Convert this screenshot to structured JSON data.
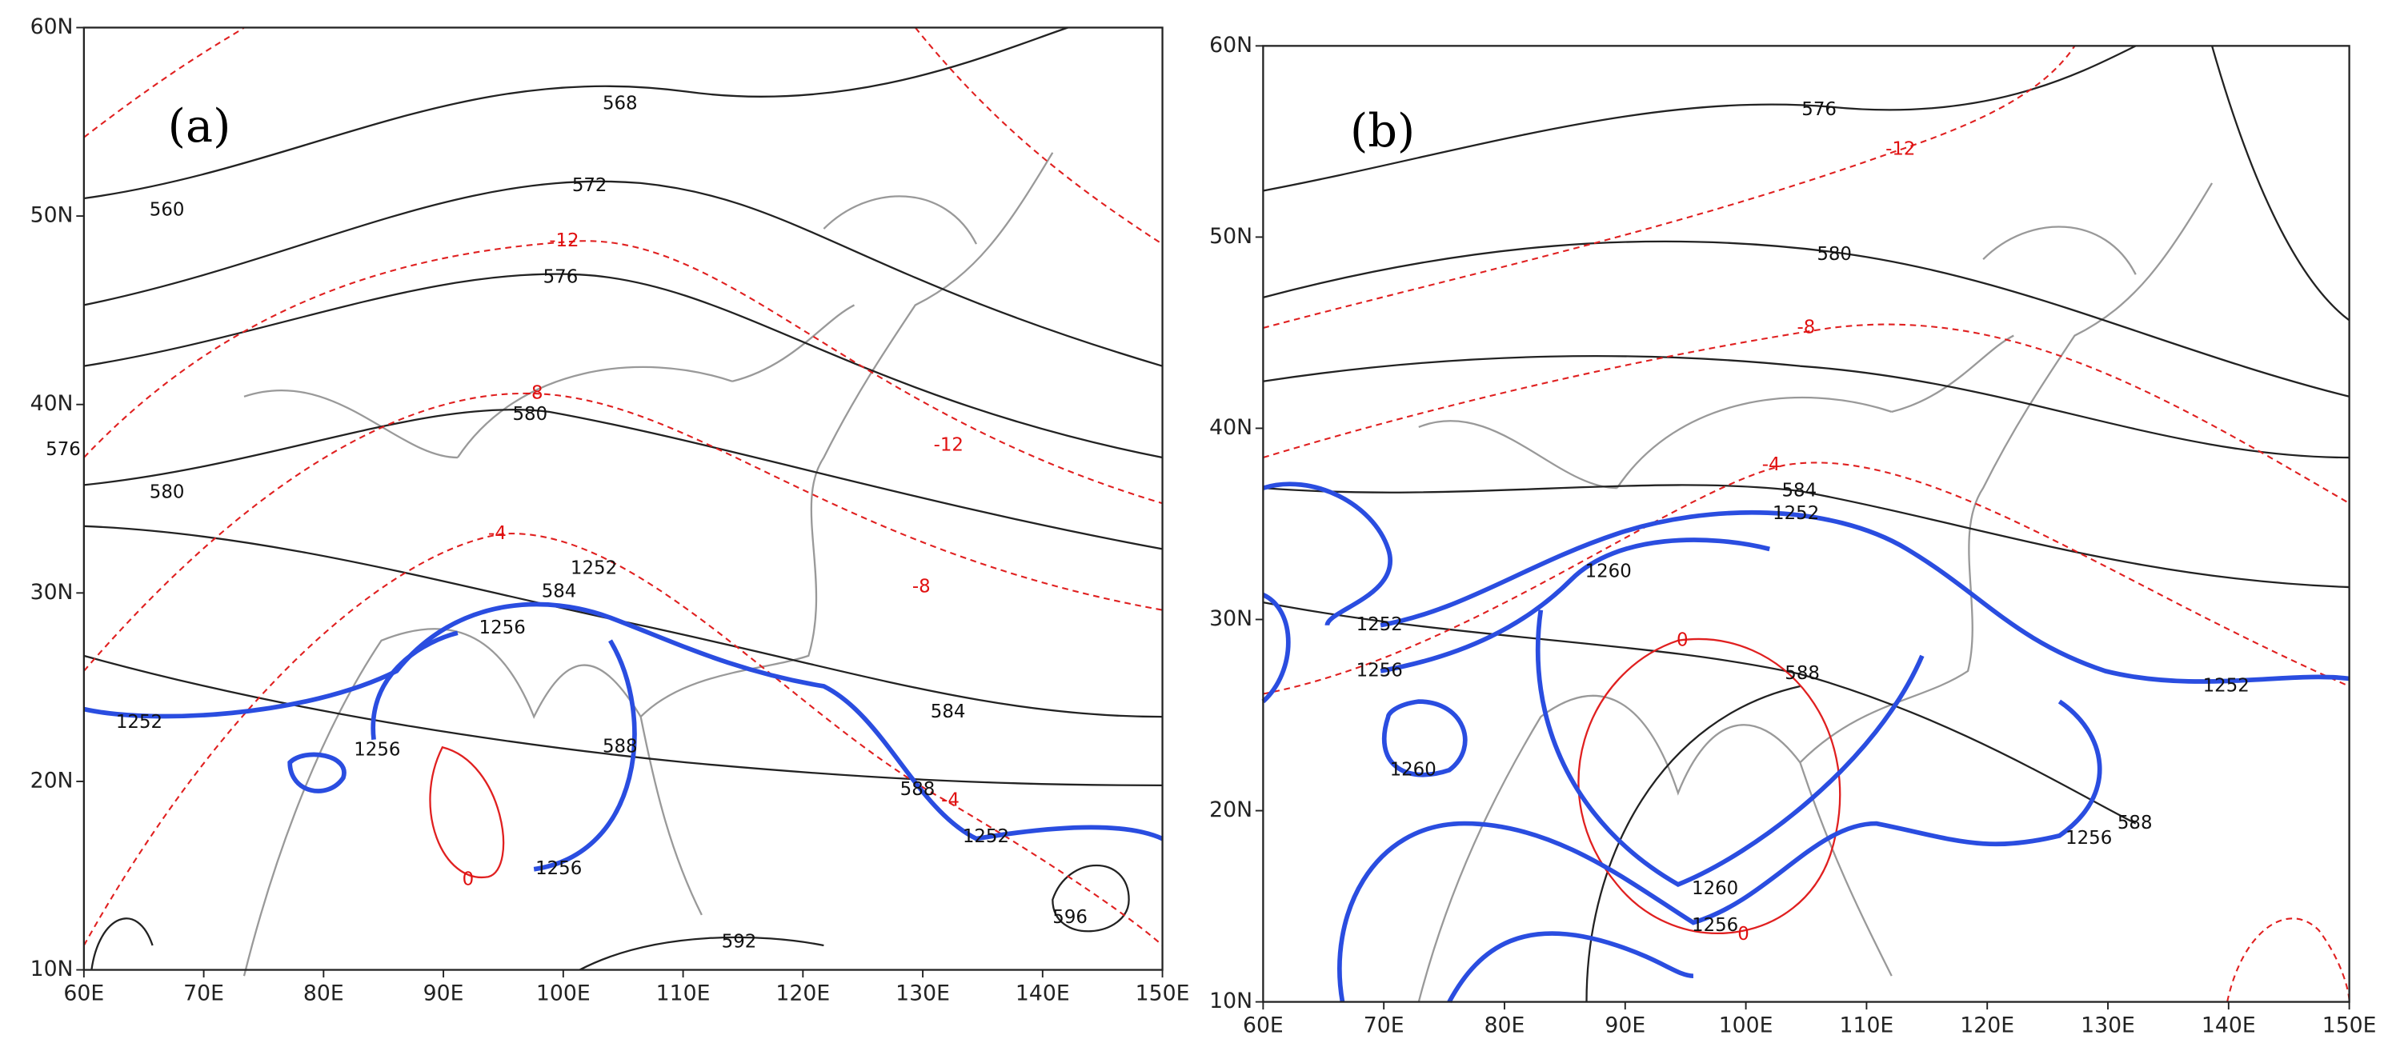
{
  "panels": [
    {
      "label": "(a)",
      "lat_ticks": [
        "60N",
        "50N",
        "40N",
        "30N",
        "20N",
        "10N"
      ],
      "lon_ticks": [
        "60E",
        "70E",
        "80E",
        "90E",
        "100E",
        "110E",
        "120E",
        "130E",
        "140E",
        "150E"
      ],
      "height_labels": [
        "560",
        "568",
        "572",
        "576",
        "576",
        "580",
        "580",
        "584",
        "584",
        "588",
        "588",
        "592",
        "596"
      ],
      "temperature_labels": [
        "-12",
        "-12",
        "-8",
        "-8",
        "-4",
        "-4",
        "0"
      ],
      "isentrope_labels": [
        "1252",
        "1252",
        "1256",
        "1256",
        "1256",
        "1252"
      ]
    },
    {
      "label": "(b)",
      "lat_ticks": [
        "60N",
        "50N",
        "40N",
        "30N",
        "20N",
        "10N"
      ],
      "lon_ticks": [
        "60E",
        "70E",
        "80E",
        "90E",
        "100E",
        "110E",
        "120E",
        "130E",
        "140E",
        "150E"
      ],
      "height_labels": [
        "576",
        "580",
        "584",
        "588",
        "588"
      ],
      "temperature_labels": [
        "-12",
        "-8",
        "-4",
        "0",
        "0"
      ],
      "isentrope_labels": [
        "1252",
        "1260",
        "1252",
        "1256",
        "1260",
        "1260",
        "1256",
        "1256",
        "1252"
      ]
    }
  ]
}
